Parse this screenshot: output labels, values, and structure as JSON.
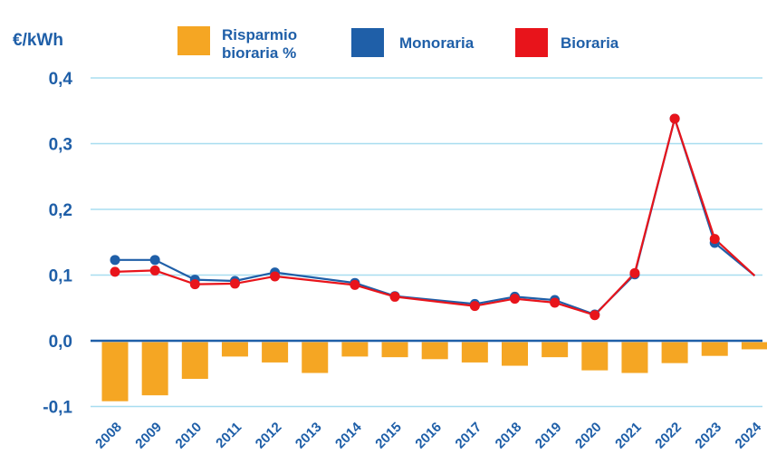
{
  "chart_data": {
    "type": "bar+line",
    "y_unit_label": "€/kWh",
    "categories": [
      "2008",
      "2009",
      "2010",
      "2011",
      "2012",
      "2013",
      "2014",
      "2015",
      "2016",
      "2017",
      "2018",
      "2019",
      "2020",
      "2021",
      "2022",
      "2023",
      "2024"
    ],
    "ylim": [
      -0.1,
      0.4
    ],
    "yticks": [
      {
        "value": 0.4,
        "label": "0,4"
      },
      {
        "value": 0.3,
        "label": "0,3"
      },
      {
        "value": 0.2,
        "label": "0,2"
      },
      {
        "value": 0.1,
        "label": "0,1"
      },
      {
        "value": 0.0,
        "label": "0,0"
      },
      {
        "value": -0.1,
        "label": "-0,1"
      }
    ],
    "grid": true,
    "legend_position": "top",
    "series": [
      {
        "name": "Risparmio bioraria %",
        "name_lines": [
          "Risparmio",
          "bioraria %"
        ],
        "kind": "bar",
        "color": "#F5A623",
        "values": [
          -0.092,
          -0.083,
          -0.058,
          -0.024,
          -0.033,
          -0.049,
          -0.024,
          -0.025,
          -0.028,
          -0.033,
          -0.038,
          -0.025,
          -0.045,
          -0.049,
          -0.034,
          -0.023,
          -0.013
        ]
      },
      {
        "name": "Monoraria",
        "name_lines": [
          "Monoraria"
        ],
        "kind": "line",
        "color": "#1F5FA8",
        "markers": "2008-2023",
        "values": [
          0.123,
          0.123,
          0.093,
          0.091,
          0.104,
          null,
          0.088,
          0.068,
          null,
          0.056,
          0.067,
          0.062,
          0.04,
          0.101,
          0.338,
          0.149,
          0.099
        ]
      },
      {
        "name": "Bioraria",
        "name_lines": [
          "Bioraria"
        ],
        "kind": "line",
        "color": "#E8141B",
        "markers": "2008-2023",
        "values": [
          0.105,
          0.107,
          0.086,
          0.087,
          0.098,
          null,
          0.085,
          0.067,
          null,
          0.053,
          0.064,
          0.058,
          0.039,
          0.103,
          0.338,
          0.155,
          0.099
        ]
      }
    ],
    "colors": {
      "axis_text": "#1F5FA8",
      "grid": "#A8DDF0",
      "baseline": "#1F5FA8"
    }
  }
}
